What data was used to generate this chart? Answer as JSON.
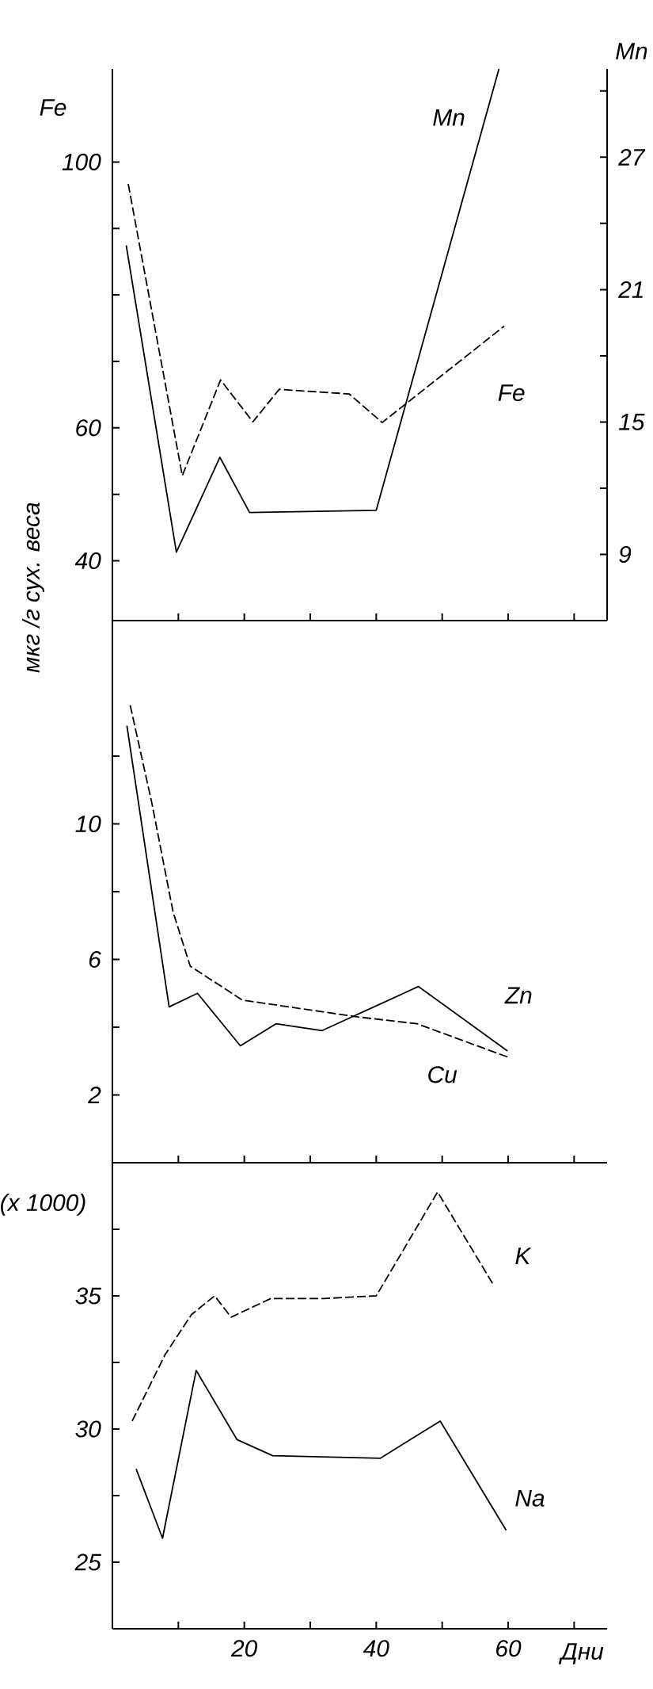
{
  "chart_data": [
    {
      "type": "line",
      "ylabel": "мкг /г сух. веса",
      "y2label": "Mn",
      "annotations": [
        "Fe"
      ],
      "legend": false,
      "tick_labels": "y",
      "xlim": [
        0,
        75
      ],
      "xticks": [
        {
          "value": 10,
          "label": null
        },
        {
          "value": 20,
          "label": null
        },
        {
          "value": 30,
          "label": null
        },
        {
          "value": 40,
          "label": null
        },
        {
          "value": 50,
          "label": null
        },
        {
          "value": 60,
          "label": null
        },
        {
          "value": 70,
          "label": null
        }
      ],
      "ylim": [
        31,
        114
      ],
      "yticks": [
        40,
        {
          "value": 50,
          "label": null
        },
        60,
        {
          "value": 70,
          "label": null
        },
        {
          "value": 80,
          "label": null
        },
        {
          "value": 90,
          "label": null
        },
        100
      ],
      "y2lim": [
        6,
        31
      ],
      "y2ticks": [
        9,
        {
          "value": 12,
          "label": null
        },
        15,
        {
          "value": 18,
          "label": null
        },
        21,
        {
          "value": 24,
          "label": null
        },
        27,
        {
          "value": 30,
          "label": null
        }
      ],
      "series": [
        {
          "name": "Fe",
          "color": "#000000",
          "line_style": "dashed",
          "x": [
            2.4,
            10.6,
            16.4,
            21.3,
            25.3,
            35.9,
            40.9,
            59.4
          ],
          "values": [
            96.7,
            52.8,
            67.2,
            60.9,
            65.8,
            65.1,
            60.8,
            75.3
          ]
        },
        {
          "name": "Mn",
          "color": "#000000",
          "line_style": "solid",
          "axis": "y2",
          "x": [
            2.1,
            9.7,
            16.3,
            20.8,
            40,
            58.6
          ],
          "values": [
            23.0,
            9.1,
            13.4,
            10.9,
            11.0,
            31.0
          ]
        }
      ]
    },
    {
      "type": "line",
      "legend": false,
      "tick_labels": "y",
      "xlim": [
        0,
        75
      ],
      "xticks": [
        {
          "value": 10,
          "label": null
        },
        {
          "value": 20,
          "label": null
        },
        {
          "value": 30,
          "label": null
        },
        {
          "value": 40,
          "label": null
        },
        {
          "value": 50,
          "label": null
        },
        {
          "value": 60,
          "label": null
        },
        {
          "value": 70,
          "label": null
        }
      ],
      "ylim": [
        0,
        16
      ],
      "yticks": [
        2,
        {
          "value": 4,
          "label": null
        },
        6,
        {
          "value": 8,
          "label": null
        },
        10,
        {
          "value": 12,
          "label": null
        }
      ],
      "series": [
        {
          "name": "Zn",
          "color": "#000000",
          "line_style": "solid",
          "x": [
            2.2,
            8.6,
            12.9,
            19.4,
            24.8,
            31.8,
            46.4,
            59.9
          ],
          "values": [
            12.9,
            4.6,
            5.0,
            3.45,
            4.1,
            3.9,
            5.2,
            3.3
          ]
        },
        {
          "name": "Cu",
          "color": "#000000",
          "line_style": "dashed",
          "x": [
            2.7,
            6,
            9.2,
            11.8,
            19.7,
            37.3,
            46.2,
            60.2
          ],
          "values": [
            13.5,
            10.6,
            7.4,
            5.8,
            4.8,
            4.3,
            4.1,
            3.1
          ]
        }
      ]
    },
    {
      "type": "line",
      "legend": false,
      "xlabel": "Дни",
      "annotations": [
        "(x 1000)"
      ],
      "xlim": [
        0,
        75
      ],
      "xticks": [
        {
          "value": 10,
          "label": null
        },
        20,
        {
          "value": 30,
          "label": null
        },
        40,
        {
          "value": 50,
          "label": null
        },
        60,
        {
          "value": 70,
          "label": null
        }
      ],
      "ylim": [
        22.5,
        40
      ],
      "yticks": [
        25,
        {
          "value": 27.5,
          "label": null
        },
        30,
        {
          "value": 32.5,
          "label": null
        },
        35,
        {
          "value": 37.5,
          "label": null
        }
      ],
      "series": [
        {
          "name": "K",
          "color": "#000000",
          "line_style": "dashed",
          "x": [
            3,
            8,
            12,
            15.5,
            18,
            24,
            32,
            40,
            49.3,
            57.8
          ],
          "values": [
            30.3,
            32.8,
            34.3,
            35.0,
            34.2,
            34.9,
            34.9,
            35.0,
            38.9,
            35.4
          ]
        },
        {
          "name": "Na",
          "color": "#000000",
          "line_style": "solid",
          "x": [
            3.6,
            7.6,
            12.7,
            18.9,
            24.3,
            40.6,
            49.7,
            59.7
          ],
          "values": [
            28.5,
            25.9,
            32.2,
            29.6,
            29.0,
            28.9,
            30.3,
            26.2
          ]
        }
      ]
    }
  ]
}
